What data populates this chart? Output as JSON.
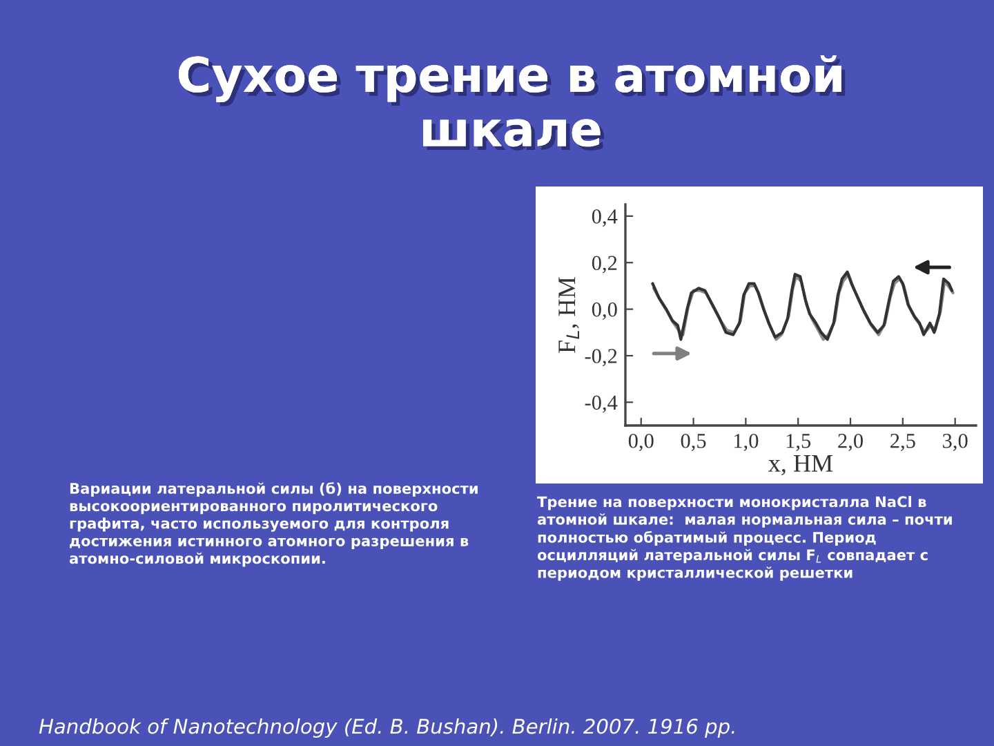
{
  "chart_data": {
    "type": "line",
    "title": "Сухое трение в атомной\nшкале",
    "xlabel": "x, НМ",
    "ylabel": "F$_{L}$, НМ",
    "annotations": [
      "Вариации латеральной силы (б) на поверхности\nвысокоориентированного пиролитического\nграфита, часто используемого для контроля\nдостижения истинного атомного разрешения в\nатомно-силовой микроскопии.",
      "Трение на поверхности монокристалла NaCl в\nатомной шкале:  малая нормальная сила – почти\nполностью обратимый процесс. Период\nосцилляций латеральной силы F$_{L}$ совпадает с\nпериодом кристаллической решетки",
      "Handbook of Nanotechnology (Ed. B. Bushan). Berlin. 2007. 1916 pp."
    ],
    "series": [
      {
        "color": "#8c8c8c",
        "x": [
          0.12,
          0.18,
          0.25,
          0.31,
          0.36,
          0.4,
          0.45,
          0.5,
          0.56,
          0.62,
          0.69,
          0.76,
          0.82,
          0.89,
          0.95,
          0.99,
          1.04,
          1.09,
          1.13,
          1.18,
          1.23,
          1.29,
          1.34,
          1.41,
          1.45,
          1.48,
          1.53,
          1.58,
          1.63,
          1.68,
          1.74,
          1.79,
          1.85,
          1.89,
          1.93,
          1.98,
          2.03,
          2.08,
          2.14,
          2.2,
          2.27,
          2.33,
          2.38,
          2.42,
          2.47,
          2.51,
          2.56,
          2.62,
          2.67,
          2.71,
          2.77,
          2.81,
          2.86,
          2.9,
          2.95,
          2.98
        ],
        "values": [
          0.09,
          0.04,
          -0.01,
          -0.06,
          -0.09,
          -0.11,
          0.01,
          0.08,
          0.08,
          0.07,
          0.01,
          -0.05,
          -0.09,
          -0.1,
          -0.05,
          0.07,
          0.1,
          0.1,
          0.06,
          -0.01,
          -0.07,
          -0.13,
          -0.11,
          -0.03,
          0.09,
          0.14,
          0.12,
          0.02,
          -0.04,
          -0.08,
          -0.13,
          -0.11,
          -0.05,
          0.07,
          0.12,
          0.15,
          0.09,
          0.04,
          -0.02,
          -0.07,
          -0.11,
          -0.06,
          0.05,
          0.11,
          0.13,
          0.1,
          0.01,
          -0.04,
          -0.07,
          -0.1,
          -0.07,
          -0.09,
          -0.01,
          0.12,
          0.09,
          0.07
        ]
      },
      {
        "color": "#333333",
        "x": [
          0.11,
          0.17,
          0.24,
          0.3,
          0.35,
          0.38,
          0.44,
          0.48,
          0.55,
          0.61,
          0.68,
          0.75,
          0.81,
          0.88,
          0.94,
          0.98,
          1.03,
          1.08,
          1.12,
          1.17,
          1.22,
          1.28,
          1.35,
          1.4,
          1.44,
          1.47,
          1.52,
          1.57,
          1.61,
          1.67,
          1.72,
          1.78,
          1.84,
          1.88,
          1.92,
          1.97,
          2.01,
          2.06,
          2.12,
          2.19,
          2.26,
          2.32,
          2.37,
          2.41,
          2.46,
          2.5,
          2.55,
          2.61,
          2.66,
          2.7,
          2.76,
          2.8,
          2.85,
          2.89,
          2.94,
          2.97
        ],
        "values": [
          0.11,
          0.05,
          0.0,
          -0.05,
          -0.07,
          -0.13,
          0.0,
          0.07,
          0.09,
          0.08,
          0.02,
          -0.04,
          -0.1,
          -0.11,
          -0.06,
          0.06,
          0.11,
          0.11,
          0.07,
          0.0,
          -0.06,
          -0.12,
          -0.1,
          -0.04,
          0.08,
          0.15,
          0.14,
          0.04,
          -0.02,
          -0.06,
          -0.1,
          -0.13,
          -0.06,
          0.06,
          0.13,
          0.16,
          0.11,
          0.06,
          0.0,
          -0.06,
          -0.1,
          -0.07,
          0.04,
          0.12,
          0.14,
          0.11,
          0.02,
          -0.03,
          -0.06,
          -0.11,
          -0.06,
          -0.1,
          -0.02,
          0.13,
          0.11,
          0.08
        ]
      }
    ],
    "xlim": [
      -0.15,
      3.2
    ],
    "ylim": [
      -0.5,
      0.45
    ],
    "xticks": [
      {
        "value": 0.0,
        "label": "0,0"
      },
      {
        "value": 0.5,
        "label": "0,5"
      },
      {
        "value": 1.0,
        "label": "1,0"
      },
      {
        "value": 1.5,
        "label": "1,5"
      },
      {
        "value": 2.0,
        "label": "2,0"
      },
      {
        "value": 2.5,
        "label": "2,5"
      },
      {
        "value": 3.0,
        "label": "3,0"
      }
    ],
    "yticks": [
      {
        "value": -0.4,
        "label": "-0,4"
      },
      {
        "value": -0.2,
        "label": "-0,2"
      },
      {
        "value": 0.0,
        "label": "0,0"
      },
      {
        "value": 0.2,
        "label": "0,2"
      },
      {
        "value": 0.4,
        "label": "0,4"
      }
    ]
  }
}
